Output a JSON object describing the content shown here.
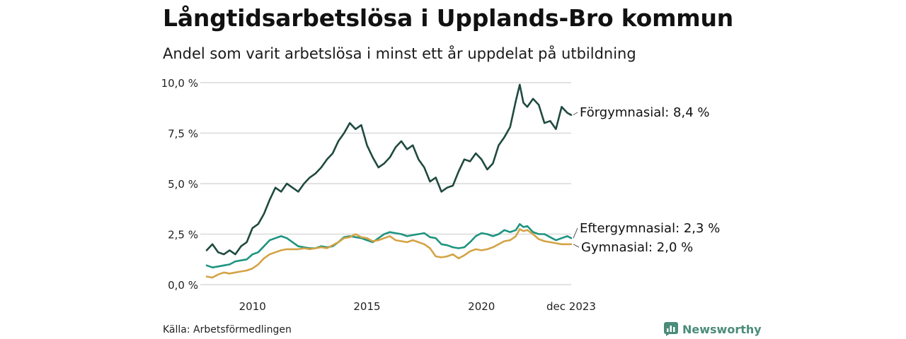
{
  "title": "Långtidsarbetslösa i Upplands-Bro kommun",
  "subtitle": "Andel som varit arbetslösa i minst ett år uppdelat på utbildning",
  "source": "Källa: Arbetsförmedlingen",
  "brand": "Newsworthy",
  "colors": {
    "forgymnasial": "#1f4a40",
    "eftergymnasial": "#1e9480",
    "gymnasial": "#d4a345",
    "grid": "#d9d9d9",
    "brand": "#4a8c79"
  },
  "chart_data": {
    "type": "line",
    "title": "Långtidsarbetslösa i Upplands-Bro kommun",
    "xlabel": "",
    "ylabel": "",
    "xlim": [
      2008.0,
      2023.917
    ],
    "ylim": [
      0,
      10
    ],
    "y_ticks": [
      0,
      2.5,
      5,
      7.5,
      10
    ],
    "y_tick_labels": [
      "0,0 %",
      "2,5 %",
      "5,0 %",
      "7,5 %",
      "10,0 %"
    ],
    "x_ticks": [
      2010,
      2015,
      2020,
      2023.917
    ],
    "x_tick_labels": [
      "2010",
      "2015",
      "2020",
      "dec 2023"
    ],
    "series": [
      {
        "name": "Förgymnasial",
        "end_label": "Förgymnasial: 8,4 %",
        "color_key": "forgymnasial",
        "points": [
          [
            2008.0,
            1.7
          ],
          [
            2008.25,
            2.0
          ],
          [
            2008.5,
            1.6
          ],
          [
            2008.75,
            1.5
          ],
          [
            2009.0,
            1.7
          ],
          [
            2009.25,
            1.5
          ],
          [
            2009.5,
            1.9
          ],
          [
            2009.75,
            2.1
          ],
          [
            2010.0,
            2.8
          ],
          [
            2010.25,
            3.0
          ],
          [
            2010.5,
            3.5
          ],
          [
            2010.75,
            4.2
          ],
          [
            2011.0,
            4.8
          ],
          [
            2011.25,
            4.6
          ],
          [
            2011.5,
            5.0
          ],
          [
            2011.75,
            4.8
          ],
          [
            2012.0,
            4.6
          ],
          [
            2012.25,
            5.0
          ],
          [
            2012.5,
            5.3
          ],
          [
            2012.75,
            5.5
          ],
          [
            2013.0,
            5.8
          ],
          [
            2013.25,
            6.2
          ],
          [
            2013.5,
            6.5
          ],
          [
            2013.75,
            7.1
          ],
          [
            2014.0,
            7.5
          ],
          [
            2014.25,
            8.0
          ],
          [
            2014.5,
            7.7
          ],
          [
            2014.75,
            7.9
          ],
          [
            2015.0,
            6.9
          ],
          [
            2015.25,
            6.3
          ],
          [
            2015.5,
            5.8
          ],
          [
            2015.75,
            6.0
          ],
          [
            2016.0,
            6.3
          ],
          [
            2016.25,
            6.8
          ],
          [
            2016.5,
            7.1
          ],
          [
            2016.75,
            6.7
          ],
          [
            2017.0,
            6.9
          ],
          [
            2017.25,
            6.2
          ],
          [
            2017.5,
            5.8
          ],
          [
            2017.75,
            5.1
          ],
          [
            2018.0,
            5.3
          ],
          [
            2018.25,
            4.6
          ],
          [
            2018.5,
            4.8
          ],
          [
            2018.75,
            4.9
          ],
          [
            2019.0,
            5.6
          ],
          [
            2019.25,
            6.2
          ],
          [
            2019.5,
            6.1
          ],
          [
            2019.75,
            6.5
          ],
          [
            2020.0,
            6.2
          ],
          [
            2020.25,
            5.7
          ],
          [
            2020.5,
            6.0
          ],
          [
            2020.75,
            6.9
          ],
          [
            2021.0,
            7.3
          ],
          [
            2021.25,
            7.8
          ],
          [
            2021.5,
            9.1
          ],
          [
            2021.67,
            9.9
          ],
          [
            2021.83,
            9.0
          ],
          [
            2022.0,
            8.8
          ],
          [
            2022.25,
            9.2
          ],
          [
            2022.5,
            8.9
          ],
          [
            2022.75,
            8.0
          ],
          [
            2023.0,
            8.1
          ],
          [
            2023.25,
            7.7
          ],
          [
            2023.5,
            8.8
          ],
          [
            2023.75,
            8.5
          ],
          [
            2023.917,
            8.4
          ]
        ]
      },
      {
        "name": "Eftergymnasial",
        "end_label": "Eftergymnasial: 2,3 %",
        "color_key": "eftergymnasial",
        "points": [
          [
            2008.0,
            0.95
          ],
          [
            2008.25,
            0.85
          ],
          [
            2008.5,
            0.9
          ],
          [
            2008.75,
            0.95
          ],
          [
            2009.0,
            1.0
          ],
          [
            2009.25,
            1.15
          ],
          [
            2009.5,
            1.2
          ],
          [
            2009.75,
            1.25
          ],
          [
            2010.0,
            1.5
          ],
          [
            2010.25,
            1.6
          ],
          [
            2010.5,
            1.9
          ],
          [
            2010.75,
            2.2
          ],
          [
            2011.0,
            2.3
          ],
          [
            2011.25,
            2.4
          ],
          [
            2011.5,
            2.3
          ],
          [
            2011.75,
            2.1
          ],
          [
            2012.0,
            1.9
          ],
          [
            2012.25,
            1.85
          ],
          [
            2012.5,
            1.8
          ],
          [
            2012.75,
            1.8
          ],
          [
            2013.0,
            1.9
          ],
          [
            2013.25,
            1.85
          ],
          [
            2013.5,
            1.9
          ],
          [
            2013.75,
            2.1
          ],
          [
            2014.0,
            2.35
          ],
          [
            2014.25,
            2.4
          ],
          [
            2014.5,
            2.35
          ],
          [
            2014.75,
            2.3
          ],
          [
            2015.0,
            2.2
          ],
          [
            2015.25,
            2.1
          ],
          [
            2015.5,
            2.3
          ],
          [
            2015.75,
            2.5
          ],
          [
            2016.0,
            2.6
          ],
          [
            2016.25,
            2.55
          ],
          [
            2016.5,
            2.5
          ],
          [
            2016.75,
            2.4
          ],
          [
            2017.0,
            2.45
          ],
          [
            2017.25,
            2.5
          ],
          [
            2017.5,
            2.55
          ],
          [
            2017.75,
            2.35
          ],
          [
            2018.0,
            2.3
          ],
          [
            2018.25,
            2.0
          ],
          [
            2018.5,
            1.95
          ],
          [
            2018.75,
            1.85
          ],
          [
            2019.0,
            1.8
          ],
          [
            2019.25,
            1.85
          ],
          [
            2019.5,
            2.1
          ],
          [
            2019.75,
            2.4
          ],
          [
            2020.0,
            2.55
          ],
          [
            2020.25,
            2.5
          ],
          [
            2020.5,
            2.4
          ],
          [
            2020.75,
            2.5
          ],
          [
            2021.0,
            2.7
          ],
          [
            2021.25,
            2.6
          ],
          [
            2021.5,
            2.7
          ],
          [
            2021.67,
            3.0
          ],
          [
            2021.83,
            2.85
          ],
          [
            2022.0,
            2.9
          ],
          [
            2022.25,
            2.6
          ],
          [
            2022.5,
            2.5
          ],
          [
            2022.75,
            2.5
          ],
          [
            2023.0,
            2.35
          ],
          [
            2023.25,
            2.2
          ],
          [
            2023.5,
            2.3
          ],
          [
            2023.75,
            2.4
          ],
          [
            2023.917,
            2.3
          ]
        ]
      },
      {
        "name": "Gymnasial",
        "end_label": "Gymnasial: 2,0 %",
        "color_key": "gymnasial",
        "points": [
          [
            2008.0,
            0.4
          ],
          [
            2008.25,
            0.35
          ],
          [
            2008.5,
            0.5
          ],
          [
            2008.75,
            0.6
          ],
          [
            2009.0,
            0.55
          ],
          [
            2009.25,
            0.6
          ],
          [
            2009.5,
            0.65
          ],
          [
            2009.75,
            0.7
          ],
          [
            2010.0,
            0.8
          ],
          [
            2010.25,
            1.0
          ],
          [
            2010.5,
            1.3
          ],
          [
            2010.75,
            1.5
          ],
          [
            2011.0,
            1.6
          ],
          [
            2011.25,
            1.7
          ],
          [
            2011.5,
            1.75
          ],
          [
            2011.75,
            1.75
          ],
          [
            2012.0,
            1.75
          ],
          [
            2012.25,
            1.8
          ],
          [
            2012.5,
            1.75
          ],
          [
            2012.75,
            1.8
          ],
          [
            2013.0,
            1.85
          ],
          [
            2013.25,
            1.8
          ],
          [
            2013.5,
            1.95
          ],
          [
            2013.75,
            2.1
          ],
          [
            2014.0,
            2.3
          ],
          [
            2014.25,
            2.35
          ],
          [
            2014.5,
            2.5
          ],
          [
            2014.75,
            2.35
          ],
          [
            2015.0,
            2.3
          ],
          [
            2015.25,
            2.15
          ],
          [
            2015.5,
            2.2
          ],
          [
            2015.75,
            2.3
          ],
          [
            2016.0,
            2.4
          ],
          [
            2016.25,
            2.2
          ],
          [
            2016.5,
            2.15
          ],
          [
            2016.75,
            2.1
          ],
          [
            2017.0,
            2.2
          ],
          [
            2017.25,
            2.1
          ],
          [
            2017.5,
            2.0
          ],
          [
            2017.75,
            1.8
          ],
          [
            2018.0,
            1.4
          ],
          [
            2018.25,
            1.35
          ],
          [
            2018.5,
            1.4
          ],
          [
            2018.75,
            1.5
          ],
          [
            2019.0,
            1.3
          ],
          [
            2019.25,
            1.45
          ],
          [
            2019.5,
            1.65
          ],
          [
            2019.75,
            1.75
          ],
          [
            2020.0,
            1.7
          ],
          [
            2020.25,
            1.75
          ],
          [
            2020.5,
            1.85
          ],
          [
            2020.75,
            2.0
          ],
          [
            2021.0,
            2.15
          ],
          [
            2021.25,
            2.2
          ],
          [
            2021.5,
            2.4
          ],
          [
            2021.67,
            2.75
          ],
          [
            2021.83,
            2.65
          ],
          [
            2022.0,
            2.7
          ],
          [
            2022.25,
            2.5
          ],
          [
            2022.5,
            2.25
          ],
          [
            2022.75,
            2.15
          ],
          [
            2023.0,
            2.1
          ],
          [
            2023.25,
            2.05
          ],
          [
            2023.5,
            2.0
          ],
          [
            2023.75,
            2.0
          ],
          [
            2023.917,
            2.0
          ]
        ]
      }
    ]
  }
}
